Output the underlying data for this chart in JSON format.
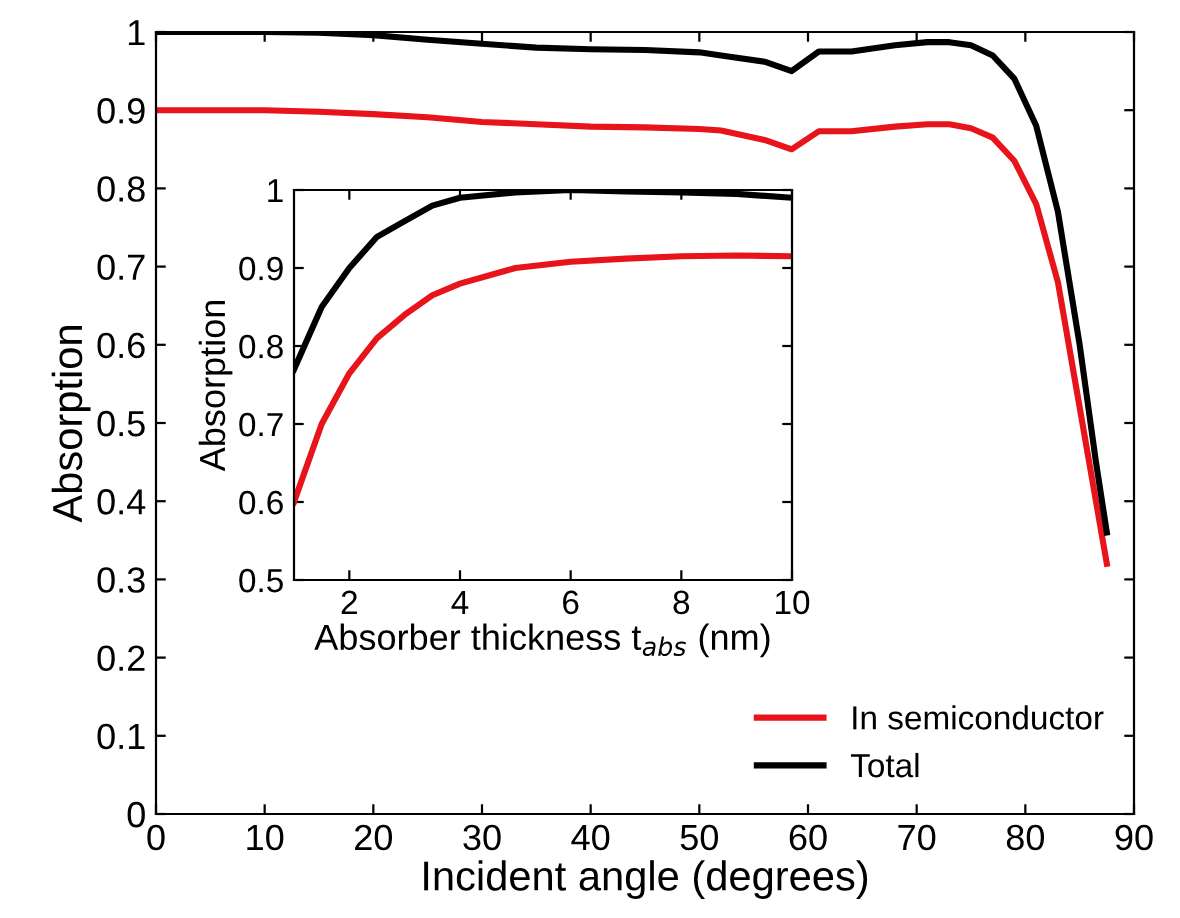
{
  "chart_data": [
    {
      "type": "line",
      "xlabel": "Incident angle (degrees)",
      "ylabel": "Absorption",
      "xlim": [
        0,
        90
      ],
      "xticks": [
        0,
        10,
        20,
        30,
        40,
        50,
        60,
        70,
        80,
        90
      ],
      "ylim": [
        0,
        1
      ],
      "yticks": [
        0,
        0.1,
        0.2,
        0.3,
        0.4,
        0.5,
        0.6,
        0.7,
        0.8,
        0.9,
        1
      ],
      "legend": "bottom right",
      "grid": false,
      "x": [
        0,
        10,
        15,
        20,
        25,
        30,
        35,
        40,
        45,
        50,
        52,
        56,
        58.5,
        61,
        64,
        68,
        71,
        73,
        75,
        77,
        79,
        81,
        83,
        85,
        86.5,
        87.5
      ],
      "series": [
        {
          "name": "In semiconductor",
          "color": "#e8141b",
          "values": [
            0.9,
            0.9,
            0.898,
            0.895,
            0.891,
            0.885,
            0.882,
            0.879,
            0.878,
            0.876,
            0.874,
            0.862,
            0.85,
            0.873,
            0.873,
            0.879,
            0.882,
            0.882,
            0.877,
            0.865,
            0.835,
            0.78,
            0.68,
            0.52,
            0.4,
            0.32
          ]
        },
        {
          "name": "Total",
          "color": "#000000",
          "values": [
            1.0,
            1.0,
            0.999,
            0.996,
            0.99,
            0.985,
            0.98,
            0.978,
            0.977,
            0.974,
            0.97,
            0.962,
            0.95,
            0.975,
            0.975,
            0.983,
            0.987,
            0.987,
            0.983,
            0.97,
            0.94,
            0.88,
            0.77,
            0.6,
            0.45,
            0.36
          ]
        }
      ]
    },
    {
      "type": "line",
      "xlabel": "Absorber thickness t$_{abs}$ (nm)",
      "ylabel": "Absorption",
      "xlim": [
        1,
        10
      ],
      "xticks": [
        2,
        4,
        6,
        8,
        10
      ],
      "ylim": [
        0.5,
        1
      ],
      "yticks": [
        0.5,
        0.6,
        0.7,
        0.8,
        0.9,
        1
      ],
      "grid": false,
      "x": [
        1,
        1.5,
        2,
        2.5,
        3,
        3.5,
        4,
        5,
        6,
        7,
        8,
        9,
        10
      ],
      "series": [
        {
          "color": "#e8141b",
          "values": [
            0.6,
            0.7,
            0.765,
            0.81,
            0.84,
            0.865,
            0.88,
            0.9,
            0.908,
            0.912,
            0.915,
            0.916,
            0.915
          ]
        },
        {
          "color": "#000000",
          "values": [
            0.77,
            0.85,
            0.9,
            0.94,
            0.96,
            0.98,
            0.99,
            0.997,
            1.0,
            0.998,
            0.997,
            0.995,
            0.99
          ]
        }
      ]
    }
  ]
}
